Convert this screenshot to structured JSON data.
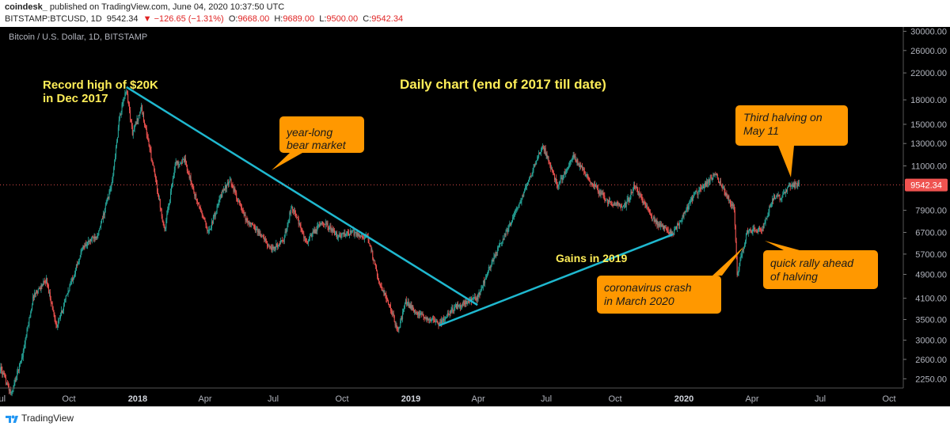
{
  "header": {
    "line1_author": "coindesk_",
    "line1_rest": " published on TradingView.com, June 04, 2020 10:37:50 UTC",
    "symbol": "BITSTAMP:BTCUSD, 1D",
    "last": "9542.34",
    "change": "▼ −126.65 (−1.31%)",
    "o_label": "O:",
    "o_value": "9668.00",
    "h_label": "H:",
    "h_value": "9689.00",
    "l_label": "L:",
    "l_value": "9500.00",
    "c_label": "C:",
    "c_value": "9542.34"
  },
  "footer": {
    "brand": "TradingView"
  },
  "colors": {
    "up": "#26a69a",
    "down": "#ef5350",
    "trendline": "#1fb8cf",
    "callout": "#ff9800",
    "annotation_text": "#ffee58",
    "price_tag": "#ef5350"
  },
  "chart_data": {
    "type": "candlestick",
    "title": "Daily chart (end of 2017 till date)",
    "instrument": "Bitcoin / U.S. Dollar, 1D, BITSTAMP",
    "y_scale": "log",
    "ylim": [
      2100,
      31000
    ],
    "y_ticks": [
      "30000.00",
      "26000.00",
      "22000.00",
      "18000.00",
      "15000.00",
      "13000.00",
      "11000.00",
      "7900.00",
      "6700.00",
      "5700.00",
      "4900.00",
      "4100.00",
      "3500.00",
      "3000.00",
      "2600.00",
      "2250.00"
    ],
    "x_ticks": [
      "Jul",
      "Oct",
      "2018",
      "Apr",
      "Jul",
      "Oct",
      "2019",
      "Apr",
      "Jul",
      "Oct",
      "2020",
      "Apr",
      "Jul",
      "Oct"
    ],
    "x_ticks_bold": [
      "2018",
      "2019",
      "2020"
    ],
    "x_range": [
      "2017-07-01",
      "2020-10-20"
    ],
    "last_price_label": "9542.34",
    "last_price": 9542.34,
    "close_series": [
      [
        "2017-07-01",
        2450
      ],
      [
        "2017-07-16",
        2000
      ],
      [
        "2017-08-01",
        2750
      ],
      [
        "2017-08-15",
        4200
      ],
      [
        "2017-09-01",
        4700
      ],
      [
        "2017-09-15",
        3300
      ],
      [
        "2017-10-01",
        4400
      ],
      [
        "2017-10-20",
        6000
      ],
      [
        "2017-11-10",
        6700
      ],
      [
        "2017-11-28",
        9800
      ],
      [
        "2017-12-08",
        16000
      ],
      [
        "2017-12-17",
        19500
      ],
      [
        "2017-12-25",
        14000
      ],
      [
        "2018-01-06",
        17000
      ],
      [
        "2018-01-20",
        11500
      ],
      [
        "2018-02-06",
        6800
      ],
      [
        "2018-02-20",
        11200
      ],
      [
        "2018-03-05",
        11400
      ],
      [
        "2018-03-20",
        8600
      ],
      [
        "2018-04-06",
        6700
      ],
      [
        "2018-04-25",
        9200
      ],
      [
        "2018-05-05",
        9800
      ],
      [
        "2018-05-25",
        7400
      ],
      [
        "2018-06-10",
        6800
      ],
      [
        "2018-06-29",
        5900
      ],
      [
        "2018-07-15",
        6300
      ],
      [
        "2018-07-26",
        8200
      ],
      [
        "2018-08-14",
        6200
      ],
      [
        "2018-09-05",
        7300
      ],
      [
        "2018-09-25",
        6500
      ],
      [
        "2018-10-15",
        6700
      ],
      [
        "2018-11-05",
        6400
      ],
      [
        "2018-11-20",
        4600
      ],
      [
        "2018-12-05",
        3800
      ],
      [
        "2018-12-15",
        3200
      ],
      [
        "2018-12-25",
        4000
      ],
      [
        "2019-01-10",
        3650
      ],
      [
        "2019-02-08",
        3400
      ],
      [
        "2019-03-01",
        3850
      ],
      [
        "2019-03-31",
        4100
      ],
      [
        "2019-04-15",
        5100
      ],
      [
        "2019-05-12",
        7000
      ],
      [
        "2019-05-30",
        8700
      ],
      [
        "2019-06-26",
        12900
      ],
      [
        "2019-07-16",
        9500
      ],
      [
        "2019-08-06",
        11800
      ],
      [
        "2019-09-01",
        9600
      ],
      [
        "2019-09-24",
        8300
      ],
      [
        "2019-10-15",
        8200
      ],
      [
        "2019-10-27",
        9500
      ],
      [
        "2019-11-22",
        7300
      ],
      [
        "2019-12-17",
        6600
      ],
      [
        "2020-01-14",
        8800
      ],
      [
        "2020-02-12",
        10300
      ],
      [
        "2020-03-08",
        8000
      ],
      [
        "2020-03-12",
        4900
      ],
      [
        "2020-03-25",
        6700
      ],
      [
        "2020-04-15",
        6900
      ],
      [
        "2020-04-30",
        8800
      ],
      [
        "2020-05-10",
        8700
      ],
      [
        "2020-05-20",
        9500
      ],
      [
        "2020-06-03",
        9542
      ]
    ],
    "trendlines": [
      {
        "name": "year-long bear market",
        "from": [
          "2017-12-17",
          19800
        ],
        "to": [
          "2019-03-31",
          3900
        ]
      },
      {
        "name": "Gains in 2019",
        "from": [
          "2019-02-08",
          3350
        ],
        "to": [
          "2019-12-17",
          6600
        ]
      }
    ],
    "annotations": [
      {
        "id": "record-high",
        "lines": [
          "Record high of $20K",
          "in Dec 2017"
        ],
        "style": "text"
      },
      {
        "id": "gains-2019",
        "lines": [
          "Gains in 2019"
        ],
        "style": "text"
      },
      {
        "id": "bear-market",
        "lines": [
          "year-long",
          "bear market"
        ],
        "style": "callout"
      },
      {
        "id": "corona-crash",
        "lines": [
          "coronavirus crash",
          "in March 2020"
        ],
        "style": "callout"
      },
      {
        "id": "quick-rally",
        "lines": [
          "quick rally ahead",
          "of halving"
        ],
        "style": "callout"
      },
      {
        "id": "third-halving",
        "lines": [
          "Third halving on",
          "May 11"
        ],
        "style": "callout"
      }
    ]
  }
}
